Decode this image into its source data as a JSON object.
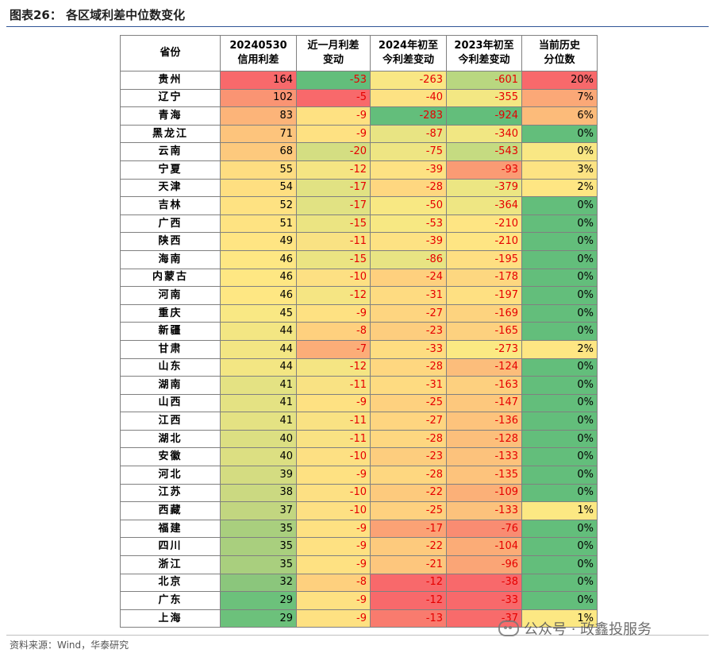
{
  "figure_title": "图表26：  各区域利差中位数变化",
  "headers": {
    "province": "省份",
    "spread": [
      "20240530",
      "信用利差"
    ],
    "m1": [
      "近一月利差",
      "变动"
    ],
    "ytd24": [
      "2024年初至",
      "今利差变动"
    ],
    "ytd23": [
      "2023年初至",
      "今利差变动"
    ],
    "pct": [
      "当前历史",
      "分位数"
    ]
  },
  "rows": [
    {
      "province": "贵州",
      "spread": "164",
      "m1": "-53",
      "ytd24": "-263",
      "ytd23": "-601",
      "pct": "20%",
      "colors": [
        "#f8696b",
        "#63be7b",
        "#f9e784",
        "#b9d780",
        "#f8696b"
      ]
    },
    {
      "province": "辽宁",
      "spread": "102",
      "m1": "-5",
      "ytd24": "-40",
      "ytd23": "-355",
      "pct": "7%",
      "colors": [
        "#fa9473",
        "#f8696b",
        "#fde283",
        "#f3e783",
        "#fba877"
      ]
    },
    {
      "province": "青海",
      "spread": "83",
      "m1": "-9",
      "ytd24": "-283",
      "ytd23": "-924",
      "pct": "6%",
      "colors": [
        "#fcb479",
        "#fee182",
        "#63be7b",
        "#63be7b",
        "#fcbb7a"
      ]
    },
    {
      "province": "黑龙江",
      "spread": "71",
      "m1": "-9",
      "ytd24": "-87",
      "ytd23": "-340",
      "pct": "0%",
      "colors": [
        "#fdc47c",
        "#fee182",
        "#e8e483",
        "#f1e783",
        "#63be7b"
      ]
    },
    {
      "province": "云南",
      "spread": "68",
      "m1": "-20",
      "ytd24": "-75",
      "ytd23": "-543",
      "pct": "0%",
      "colors": [
        "#fdc97d",
        "#d4de82",
        "#eee583",
        "#c5db81",
        "#f9e784"
      ]
    },
    {
      "province": "宁夏",
      "spread": "55",
      "m1": "-12",
      "ytd24": "-39",
      "ytd23": "-93",
      "pct": "3%",
      "colors": [
        "#fedd81",
        "#f5e583",
        "#fde283",
        "#fa9b74",
        "#fde383"
      ]
    },
    {
      "province": "天津",
      "spread": "54",
      "m1": "-17",
      "ytd24": "-28",
      "ytd23": "-379",
      "pct": "2%",
      "colors": [
        "#fedf81",
        "#e1e283",
        "#fed780",
        "#ece683",
        "#fee683"
      ]
    },
    {
      "province": "吉林",
      "spread": "52",
      "m1": "-17",
      "ytd24": "-50",
      "ytd23": "-364",
      "pct": "0%",
      "colors": [
        "#fee282",
        "#e1e283",
        "#f8e883",
        "#eee683",
        "#63be7b"
      ]
    },
    {
      "province": "广西",
      "spread": "51",
      "m1": "-15",
      "ytd24": "-53",
      "ytd23": "-210",
      "pct": "0%",
      "colors": [
        "#fee382",
        "#ebe482",
        "#f7e883",
        "#fee583",
        "#63be7b"
      ]
    },
    {
      "province": "陕西",
      "spread": "49",
      "m1": "-11",
      "ytd24": "-39",
      "ytd23": "-210",
      "pct": "0%",
      "colors": [
        "#ffe583",
        "#f9e283",
        "#fde283",
        "#fee583",
        "#63be7b"
      ]
    },
    {
      "province": "海南",
      "spread": "46",
      "m1": "-15",
      "ytd24": "-86",
      "ytd23": "-195",
      "pct": "0%",
      "colors": [
        "#fee783",
        "#ebe482",
        "#e8e483",
        "#fedf82",
        "#63be7b"
      ]
    },
    {
      "province": "内蒙古",
      "spread": "46",
      "m1": "-10",
      "ytd24": "-24",
      "ytd23": "-178",
      "pct": "0%",
      "colors": [
        "#fee783",
        "#fde083",
        "#fed07e",
        "#fdd780",
        "#63be7b"
      ]
    },
    {
      "province": "河南",
      "spread": "46",
      "m1": "-12",
      "ytd24": "-31",
      "ytd23": "-197",
      "pct": "0%",
      "colors": [
        "#fee783",
        "#f5e583",
        "#fedb81",
        "#fee082",
        "#63be7b"
      ]
    },
    {
      "province": "重庆",
      "spread": "45",
      "m1": "-9",
      "ytd24": "-27",
      "ytd23": "-169",
      "pct": "0%",
      "colors": [
        "#f9e884",
        "#fee182",
        "#fed580",
        "#fdd37f",
        "#63be7b"
      ]
    },
    {
      "province": "新疆",
      "spread": "44",
      "m1": "-8",
      "ytd24": "-23",
      "ytd23": "-165",
      "pct": "0%",
      "colors": [
        "#f3e683",
        "#fed07e",
        "#fdcd7e",
        "#fdd17f",
        "#63be7b"
      ]
    },
    {
      "province": "甘肃",
      "spread": "44",
      "m1": "-7",
      "ytd24": "-33",
      "ytd23": "-273",
      "pct": "2%",
      "colors": [
        "#f3e683",
        "#fcad78",
        "#fedd81",
        "#fbe983",
        "#fee683"
      ]
    },
    {
      "province": "山东",
      "spread": "44",
      "m1": "-12",
      "ytd24": "-28",
      "ytd23": "-124",
      "pct": "0%",
      "colors": [
        "#f3e683",
        "#f5e583",
        "#fed780",
        "#fcbd7b",
        "#63be7b"
      ]
    },
    {
      "province": "湖南",
      "spread": "41",
      "m1": "-11",
      "ytd24": "-31",
      "ytd23": "-163",
      "pct": "0%",
      "colors": [
        "#e4e283",
        "#f9e283",
        "#fedb81",
        "#fdd07f",
        "#63be7b"
      ]
    },
    {
      "province": "山西",
      "spread": "41",
      "m1": "-9",
      "ytd24": "-25",
      "ytd23": "-147",
      "pct": "0%",
      "colors": [
        "#e4e283",
        "#fee182",
        "#fed17f",
        "#fdc87d",
        "#63be7b"
      ]
    },
    {
      "province": "江西",
      "spread": "41",
      "m1": "-11",
      "ytd24": "-27",
      "ytd23": "-136",
      "pct": "0%",
      "colors": [
        "#e4e283",
        "#f9e283",
        "#fed580",
        "#fdc37c",
        "#63be7b"
      ]
    },
    {
      "province": "湖北",
      "spread": "40",
      "m1": "-11",
      "ytd24": "-28",
      "ytd23": "-128",
      "pct": "0%",
      "colors": [
        "#dcdf82",
        "#f9e283",
        "#fed780",
        "#fcbf7b",
        "#63be7b"
      ]
    },
    {
      "province": "安徽",
      "spread": "40",
      "m1": "-10",
      "ytd24": "-23",
      "ytd23": "-133",
      "pct": "0%",
      "colors": [
        "#dcdf82",
        "#fde083",
        "#fdcd7e",
        "#fcc27c",
        "#63be7b"
      ]
    },
    {
      "province": "河北",
      "spread": "39",
      "m1": "-9",
      "ytd24": "-28",
      "ytd23": "-135",
      "pct": "0%",
      "colors": [
        "#d4dc81",
        "#fee182",
        "#fed780",
        "#fdc37c",
        "#63be7b"
      ]
    },
    {
      "province": "江苏",
      "spread": "38",
      "m1": "-10",
      "ytd24": "-22",
      "ytd23": "-109",
      "pct": "0%",
      "colors": [
        "#cbd981",
        "#fde083",
        "#fdca7d",
        "#fbb078",
        "#63be7b"
      ]
    },
    {
      "province": "西藏",
      "spread": "37",
      "m1": "-10",
      "ytd24": "-25",
      "ytd23": "-133",
      "pct": "1%",
      "colors": [
        "#c2d680",
        "#fde083",
        "#fed17f",
        "#fcc27c",
        "#fce883"
      ]
    },
    {
      "province": "福建",
      "spread": "35",
      "m1": "-9",
      "ytd24": "-17",
      "ytd23": "-76",
      "pct": "0%",
      "colors": [
        "#a9cf7e",
        "#fee182",
        "#fba275",
        "#f98c72",
        "#63be7b"
      ]
    },
    {
      "province": "四川",
      "spread": "35",
      "m1": "-9",
      "ytd24": "-22",
      "ytd23": "-104",
      "pct": "0%",
      "colors": [
        "#a9cf7e",
        "#fee182",
        "#fdca7d",
        "#fbac77",
        "#63be7b"
      ]
    },
    {
      "province": "浙江",
      "spread": "35",
      "m1": "-9",
      "ytd24": "-21",
      "ytd23": "-96",
      "pct": "0%",
      "colors": [
        "#a9cf7e",
        "#fee182",
        "#fdc67d",
        "#faa576",
        "#63be7b"
      ]
    },
    {
      "province": "北京",
      "spread": "32",
      "m1": "-8",
      "ytd24": "-12",
      "ytd23": "-38",
      "pct": "0%",
      "colors": [
        "#8bc67c",
        "#fed07e",
        "#f8696b",
        "#f8696b",
        "#63be7b"
      ]
    },
    {
      "province": "广东",
      "spread": "29",
      "m1": "-9",
      "ytd24": "-12",
      "ytd23": "-33",
      "pct": "0%",
      "colors": [
        "#6cc17b",
        "#fee182",
        "#f8696b",
        "#f8696b",
        "#63be7b"
      ]
    },
    {
      "province": "上海",
      "spread": "29",
      "m1": "-9",
      "ytd24": "-13",
      "ytd23": "-37",
      "pct": "1%",
      "colors": [
        "#6cc17b",
        "#fee182",
        "#f97b6e",
        "#f86b6b",
        "#fce883"
      ]
    }
  ],
  "source": "资料来源：Wind，华泰研究",
  "watermark": "公众号 · 政鑫投服务"
}
